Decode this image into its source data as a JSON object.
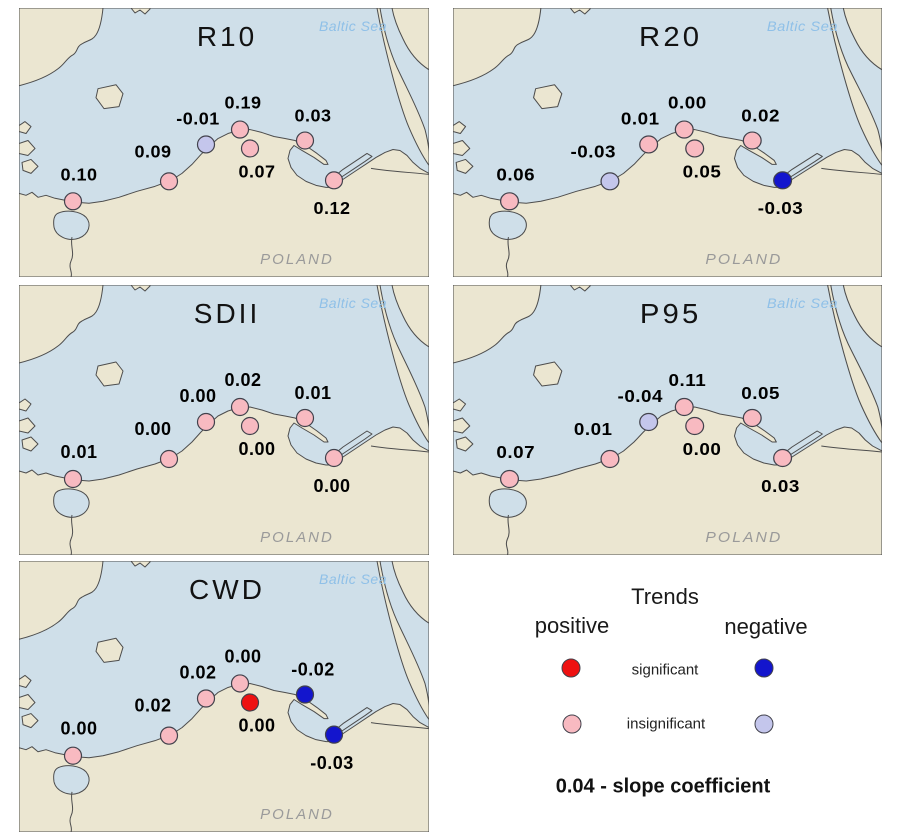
{
  "map_labels": {
    "sea": "Baltic Sea",
    "country": "POLAND"
  },
  "colors": {
    "sea": "#cfdfe9",
    "land": "#ebe6d1",
    "coast": "#4d4d4d",
    "sea_label": "#8fc0e8",
    "country_label": "#9a9a9a",
    "positive_significant": "#ee1111",
    "positive_insignificant": "#f8bac1",
    "negative_significant": "#1315cd",
    "negative_insignificant": "#c4c6ec"
  },
  "station_positions": [
    {
      "dot": [
        54,
        194
      ],
      "label": [
        60,
        167
      ]
    },
    {
      "dot": [
        150,
        174
      ],
      "label": [
        134,
        144
      ]
    },
    {
      "dot": [
        187,
        137
      ],
      "label": [
        179,
        111
      ]
    },
    {
      "dot": [
        221,
        122
      ],
      "label": [
        224,
        95
      ]
    },
    {
      "dot": [
        231,
        141
      ],
      "label": [
        238,
        164
      ]
    },
    {
      "dot": [
        286,
        133
      ],
      "label": [
        294,
        108
      ]
    },
    {
      "dot": [
        315,
        173
      ],
      "label": [
        313,
        201
      ]
    }
  ],
  "panels": [
    {
      "title": "R10",
      "stations": [
        {
          "value": "0.10",
          "trend": "positive",
          "significance": "insignificant"
        },
        {
          "value": "0.09",
          "trend": "positive",
          "significance": "insignificant"
        },
        {
          "value": "-0.01",
          "trend": "negative",
          "significance": "insignificant"
        },
        {
          "value": "0.19",
          "trend": "positive",
          "significance": "insignificant"
        },
        {
          "value": "0.07",
          "trend": "positive",
          "significance": "insignificant"
        },
        {
          "value": "0.03",
          "trend": "positive",
          "significance": "insignificant"
        },
        {
          "value": "0.12",
          "trend": "positive",
          "significance": "insignificant"
        }
      ]
    },
    {
      "title": "R20",
      "stations": [
        {
          "value": "0.06",
          "trend": "positive",
          "significance": "insignificant"
        },
        {
          "value": "-0.03",
          "trend": "negative",
          "significance": "insignificant"
        },
        {
          "value": "0.01",
          "trend": "positive",
          "significance": "insignificant"
        },
        {
          "value": "0.00",
          "trend": "positive",
          "significance": "insignificant"
        },
        {
          "value": "0.05",
          "trend": "positive",
          "significance": "insignificant"
        },
        {
          "value": "0.02",
          "trend": "positive",
          "significance": "insignificant"
        },
        {
          "value": "-0.03",
          "trend": "negative",
          "significance": "significant"
        }
      ]
    },
    {
      "title": "SDII",
      "stations": [
        {
          "value": "0.01",
          "trend": "positive",
          "significance": "insignificant"
        },
        {
          "value": "0.00",
          "trend": "positive",
          "significance": "insignificant"
        },
        {
          "value": "0.00",
          "trend": "positive",
          "significance": "insignificant"
        },
        {
          "value": "0.02",
          "trend": "positive",
          "significance": "insignificant"
        },
        {
          "value": "0.00",
          "trend": "positive",
          "significance": "insignificant"
        },
        {
          "value": "0.01",
          "trend": "positive",
          "significance": "insignificant"
        },
        {
          "value": "0.00",
          "trend": "positive",
          "significance": "insignificant"
        }
      ]
    },
    {
      "title": "P95",
      "stations": [
        {
          "value": "0.07",
          "trend": "positive",
          "significance": "insignificant"
        },
        {
          "value": "0.01",
          "trend": "positive",
          "significance": "insignificant"
        },
        {
          "value": "-0.04",
          "trend": "negative",
          "significance": "insignificant"
        },
        {
          "value": "0.11",
          "trend": "positive",
          "significance": "insignificant"
        },
        {
          "value": "0.00",
          "trend": "positive",
          "significance": "insignificant"
        },
        {
          "value": "0.05",
          "trend": "positive",
          "significance": "insignificant"
        },
        {
          "value": "0.03",
          "trend": "positive",
          "significance": "insignificant"
        }
      ]
    },
    {
      "title": "CWD",
      "stations": [
        {
          "value": "0.00",
          "trend": "positive",
          "significance": "insignificant"
        },
        {
          "value": "0.02",
          "trend": "positive",
          "significance": "insignificant"
        },
        {
          "value": "0.02",
          "trend": "positive",
          "significance": "insignificant"
        },
        {
          "value": "0.00",
          "trend": "positive",
          "significance": "insignificant"
        },
        {
          "value": "0.00",
          "trend": "positive",
          "significance": "significant"
        },
        {
          "value": "-0.02",
          "trend": "negative",
          "significance": "significant"
        },
        {
          "value": "-0.03",
          "trend": "negative",
          "significance": "significant"
        }
      ]
    }
  ],
  "legend": {
    "title": "Trends",
    "columns": [
      "positive",
      "negative"
    ],
    "rows": [
      "significant",
      "insignificant"
    ],
    "note": "0.04 - slope coefficient"
  }
}
